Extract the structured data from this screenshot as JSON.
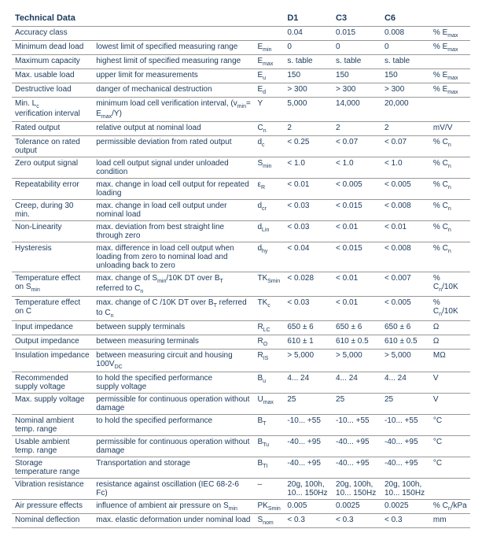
{
  "headers": [
    "Technical Data",
    "",
    "",
    "D1",
    "C3",
    "C6",
    ""
  ],
  "rows": [
    [
      "Accuracy class",
      "",
      "",
      "0.04",
      "0.015",
      "0.008",
      "% E<sub>max</sub>"
    ],
    [
      "Minimum dead load",
      "lowest limit of specified measuring range",
      "E<sub>min</sub>",
      "0",
      "0",
      "0",
      "% E<sub>max</sub>"
    ],
    [
      "Maximum capacity",
      "highest limit of specified measuring range",
      "E<sub>max</sub>",
      "s. table",
      "s. table",
      "s. table",
      ""
    ],
    [
      "Max. usable load",
      "upper limit for measurements",
      "E<sub>u</sub>",
      "150",
      "150",
      "150",
      "% E<sub>max</sub>"
    ],
    [
      "Destructive load",
      "danger of mechanical destruction",
      "E<sub>d</sub>",
      "> 300",
      "> 300",
      "> 300",
      "% E<sub>max</sub>"
    ],
    [
      "Min. L<sub>c</sub><br>verification interval",
      "minimum load cell verification interval, (v<sub>min</sub>= E<sub>max</sub>/Y)",
      "Y",
      "5,000",
      "14,000",
      "20,000",
      ""
    ],
    [
      "Rated output",
      "relative output at nominal load",
      "C<sub>n</sub>",
      "2",
      "2",
      "2",
      "mV/V"
    ],
    [
      "Tolerance on rated output",
      "permissible deviation from rated output",
      "d<sub>c</sub>",
      "< 0.25",
      "< 0.07",
      "< 0.07",
      "% C<sub>n</sub>"
    ],
    [
      "Zero output signal",
      "load cell output signal under unloaded condition",
      "S<sub>min</sub>",
      "< 1.0",
      "< 1.0",
      "< 1.0",
      "% C<sub>n</sub>"
    ],
    [
      "Repeatability error",
      "max. change in load cell output for repeated loading",
      "ε<sub>R</sub>",
      "< 0.01",
      "< 0.005",
      "< 0.005",
      "% C<sub>n</sub>"
    ],
    [
      "Creep, during 30 min.",
      "max. change in load cell output under nominal load",
      "d<sub>cr</sub>",
      "< 0.03",
      "< 0.015",
      "< 0.008",
      "% C<sub>n</sub>"
    ],
    [
      "Non-Linearity",
      "max. deviation from best straight line through zero",
      "d<sub>Lin</sub>",
      "< 0.03",
      "< 0.01",
      "< 0.01",
      "% C<sub>n</sub>"
    ],
    [
      "Hysteresis",
      "max. difference in load cell output when loading from zero to nominal load and unloading back to zero",
      "d<sub>hy</sub>",
      "< 0.04",
      "< 0.015",
      "< 0.008",
      "% C<sub>n</sub>"
    ],
    [
      "Temperature effect on S<sub>min</sub>",
      "max. change of S<sub>min</sub>/10K DT over B<sub>T</sub> referred to C<sub>n</sub>",
      "TK<sub>Smin</sub>",
      "< 0.028",
      "< 0.01",
      "< 0.007",
      "% C<sub>n</sub>/10K"
    ],
    [
      "Temperature effect on C",
      "max. change of C /10K DT over B<sub>T</sub> referred to C<sub>n</sub>",
      "TK<sub>c</sub>",
      "< 0.03",
      "< 0.01",
      "< 0.005",
      "% C<sub>n</sub>/10K"
    ],
    [
      "Input impedance",
      "between supply terminals",
      "R<sub>LC</sub>",
      "650 ± 6",
      "650 ± 6",
      "650 ± 6",
      "Ω"
    ],
    [
      "Output impedance",
      "between measuring terminals",
      "R<sub>O</sub>",
      "610 ± 1",
      "610 ± 0.5",
      "610 ± 0.5",
      "Ω"
    ],
    [
      "Insulation impedance",
      "between measuring circuit and housing 100V<sub>DC</sub>",
      "R<sub>IS</sub>",
      "> 5,000",
      "> 5,000",
      "> 5,000",
      "MΩ"
    ],
    [
      "Recommended<br>supply voltage",
      "to hold the specified performance<br>supply voltage",
      "B<sub>u</sub>",
      "4... 24",
      "4... 24",
      "4... 24",
      "V"
    ],
    [
      "Max. supply voltage",
      "permissible for continuous operation without damage",
      "U<sub>max</sub>",
      "25",
      "25",
      "25",
      "V"
    ],
    [
      "Nominal ambient<br>temp. range",
      "to hold the specified performance",
      "B<sub>T</sub>",
      "-10... +55",
      "-10... +55",
      "-10... +55",
      "°C"
    ],
    [
      "Usable ambient<br>temp. range",
      "permissible for continuous operation without damage",
      "B<sub>Tu</sub>",
      "-40... +95",
      "-40... +95",
      "-40... +95",
      "°C"
    ],
    [
      "Storage<br>temperature range",
      "Transportation and storage",
      "B<sub>TI</sub>",
      "-40... +95",
      "-40... +95",
      "-40... +95",
      "°C"
    ],
    [
      "Vibration resistance",
      "resistance against oscillation (IEC 68-2-6 Fc)",
      "–",
      "20g, 100h,<br>10... 150Hz",
      "20g, 100h,<br>10... 150Hz",
      "20g, 100h,<br>10... 150Hz",
      ""
    ],
    [
      "Air pressure effects",
      "influence of ambient air pressure on S<sub>min</sub>",
      "PK<sub>Smin</sub>",
      "0.005",
      "0.0025",
      "0.0025",
      "% C<sub>n</sub>/kPa"
    ],
    [
      "Nominal deflection",
      "max. elastic deformation under nominal load",
      "S<sub>nom</sub>",
      "< 0.3",
      "< 0.3",
      "< 0.3",
      "mm"
    ]
  ]
}
